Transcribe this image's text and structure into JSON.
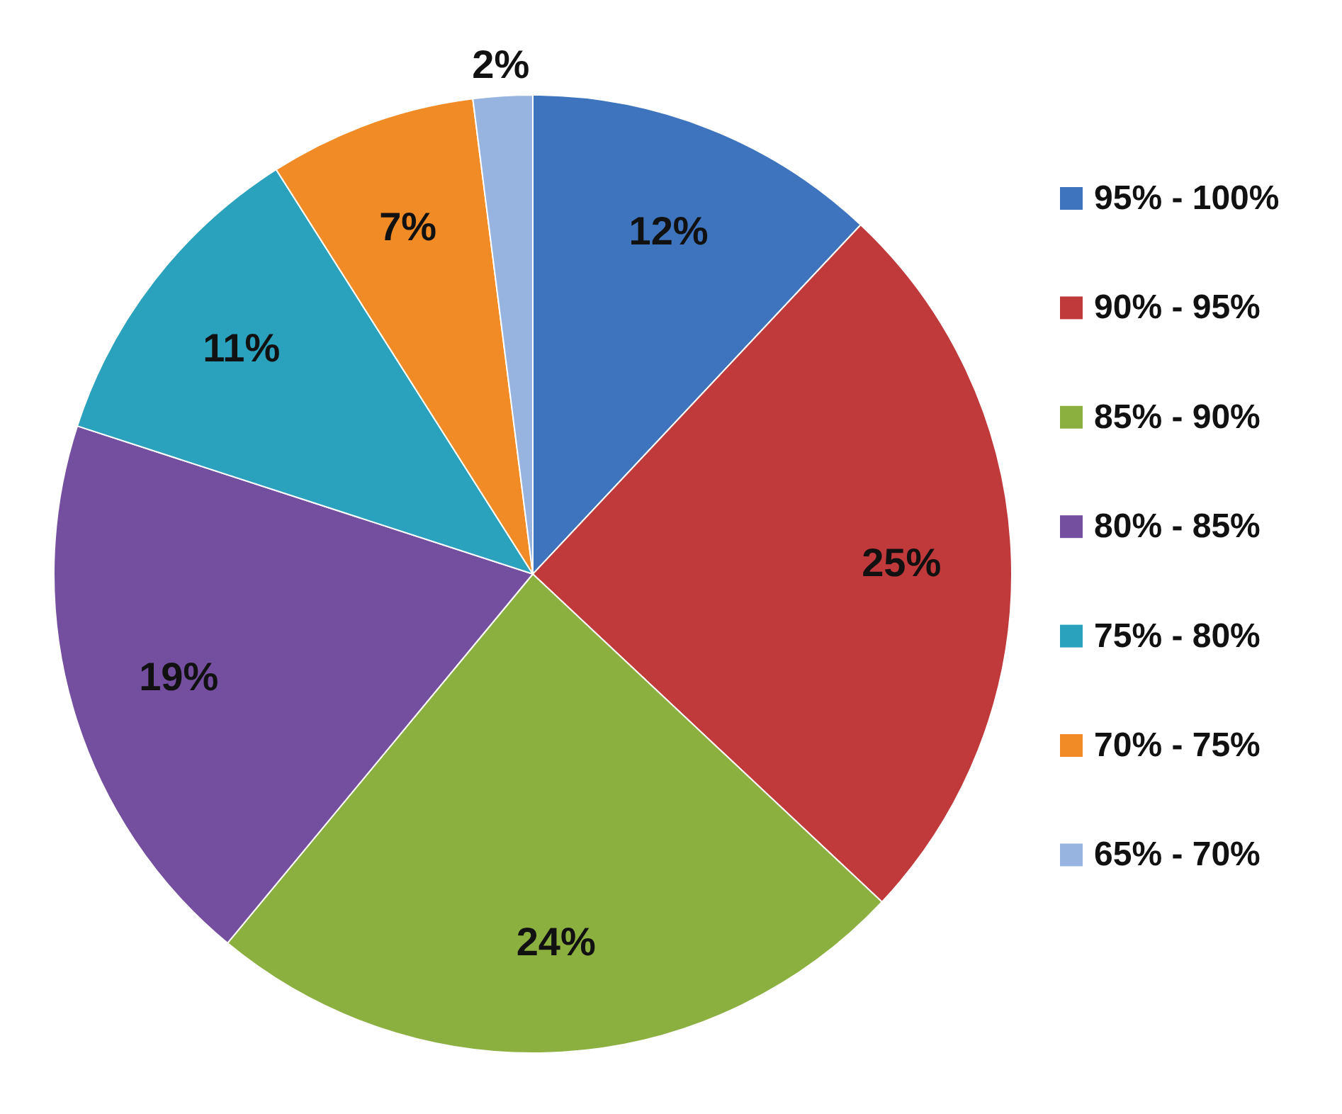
{
  "chart_data": {
    "type": "pie",
    "categories": [
      "95% - 100%",
      "90% - 95%",
      "85% - 90%",
      "80% - 85%",
      "75% - 80%",
      "70% - 75%",
      "65% - 70%"
    ],
    "values": [
      12,
      25,
      24,
      19,
      11,
      7,
      2
    ],
    "colors": [
      "#3d74bd",
      "#c0393b",
      "#8cb040",
      "#744fa0",
      "#2ba2bd",
      "#f08b26",
      "#97b3e0"
    ],
    "value_labels": [
      "12%",
      "25%",
      "24%",
      "19%",
      "11%",
      "7%",
      "2%"
    ],
    "legend": "right"
  }
}
